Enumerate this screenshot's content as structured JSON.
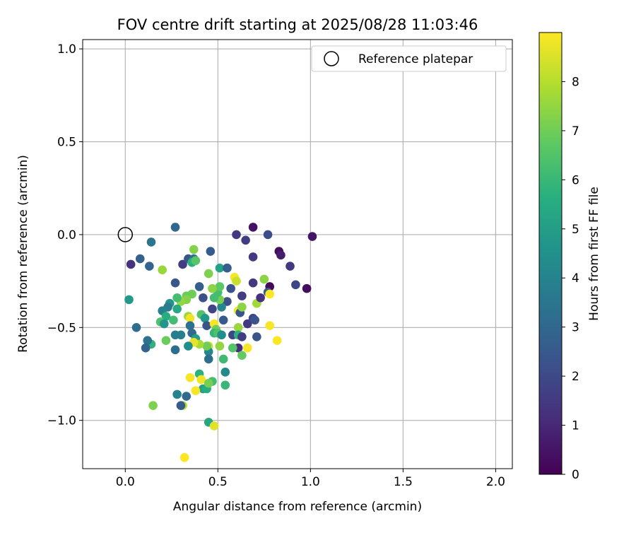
{
  "chart_data": {
    "type": "scatter",
    "title": "FOV centre drift starting at 2025/08/28 11:03:46",
    "xlabel": "Angular distance from reference (arcmin)",
    "ylabel": "Rotation from reference (arcmin)",
    "xlim": [
      -0.23,
      2.09
    ],
    "ylim": [
      -1.26,
      1.05
    ],
    "xticks": [
      0.0,
      0.5,
      1.0,
      1.5,
      2.0
    ],
    "xtick_labels": [
      "0.0",
      "0.5",
      "1.0",
      "1.5",
      "2.0"
    ],
    "yticks": [
      -1.0,
      -0.5,
      0.0,
      0.5,
      1.0
    ],
    "ytick_labels": [
      "−1.0",
      "−0.5",
      "0.0",
      "0.5",
      "1.0"
    ],
    "grid": true,
    "legend": {
      "placement": "top-right",
      "entries": [
        "Reference platepar"
      ]
    },
    "reference": {
      "x": 0.0,
      "y": 0.0
    },
    "colorbar": {
      "label": "Hours from first FF file",
      "range": [
        0,
        9.0
      ],
      "ticks": [
        0,
        1,
        2,
        3,
        4,
        5,
        6,
        7,
        8
      ],
      "colormap": "viridis"
    },
    "points": [
      [
        0.03,
        -0.16,
        1.3
      ],
      [
        0.08,
        -0.13,
        2.8
      ],
      [
        0.14,
        -0.04,
        3.5
      ],
      [
        0.27,
        0.04,
        3.0
      ],
      [
        0.13,
        -0.17,
        2.9
      ],
      [
        0.31,
        -0.16,
        1.6
      ],
      [
        0.34,
        -0.13,
        2.4
      ],
      [
        0.37,
        -0.13,
        3.4
      ],
      [
        0.36,
        -0.15,
        5.7
      ],
      [
        0.37,
        -0.08,
        7.3
      ],
      [
        0.38,
        -0.14,
        6.6
      ],
      [
        0.46,
        -0.09,
        2.6
      ],
      [
        0.2,
        -0.19,
        7.6
      ],
      [
        0.45,
        -0.21,
        7.2
      ],
      [
        0.51,
        -0.18,
        5.2
      ],
      [
        0.55,
        -0.18,
        3.3
      ],
      [
        0.55,
        -0.18,
        2.7
      ],
      [
        0.6,
        0.0,
        1.5
      ],
      [
        0.65,
        -0.03,
        1.6
      ],
      [
        0.69,
        0.04,
        0.4
      ],
      [
        0.69,
        -0.12,
        1.5
      ],
      [
        0.77,
        0.0,
        2.1
      ],
      [
        0.83,
        -0.09,
        0.3
      ],
      [
        0.84,
        -0.11,
        0.7
      ],
      [
        0.89,
        -0.17,
        1.5
      ],
      [
        1.01,
        -0.01,
        0.5
      ],
      [
        0.92,
        -0.27,
        1.9
      ],
      [
        0.98,
        -0.29,
        0.3
      ],
      [
        0.78,
        -0.28,
        0.2
      ],
      [
        0.77,
        -0.31,
        2.6
      ],
      [
        0.75,
        -0.24,
        7.4
      ],
      [
        0.71,
        -0.37,
        7.7
      ],
      [
        0.78,
        -0.32,
        9.0
      ],
      [
        0.73,
        -0.34,
        1.3
      ],
      [
        0.69,
        -0.26,
        1.5
      ],
      [
        0.63,
        -0.33,
        1.6
      ],
      [
        0.59,
        -0.23,
        8.9
      ],
      [
        0.6,
        -0.25,
        8.3
      ],
      [
        0.57,
        -0.29,
        2.3
      ],
      [
        0.61,
        -0.41,
        8.8
      ],
      [
        0.55,
        -0.36,
        2.2
      ],
      [
        0.53,
        -0.46,
        2.5
      ],
      [
        0.52,
        -0.39,
        4.1
      ],
      [
        0.51,
        -0.35,
        7.1
      ],
      [
        0.5,
        -0.31,
        6.2
      ],
      [
        0.51,
        -0.28,
        6.7
      ],
      [
        0.47,
        -0.29,
        7.4
      ],
      [
        0.48,
        -0.34,
        6.2
      ],
      [
        0.47,
        -0.4,
        1.8
      ],
      [
        0.42,
        -0.34,
        2.2
      ],
      [
        0.4,
        -0.28,
        2.7
      ],
      [
        0.36,
        -0.32,
        7.0
      ],
      [
        0.33,
        -0.33,
        6.9
      ],
      [
        0.33,
        -0.35,
        7.3
      ],
      [
        0.3,
        -0.36,
        7.5
      ],
      [
        0.28,
        -0.34,
        6.2
      ],
      [
        0.27,
        -0.26,
        2.4
      ],
      [
        0.24,
        -0.37,
        4.6
      ],
      [
        0.23,
        -0.39,
        3.7
      ],
      [
        0.2,
        -0.41,
        3.9
      ],
      [
        0.22,
        -0.44,
        5.6
      ],
      [
        0.19,
        -0.47,
        6.4
      ],
      [
        0.21,
        -0.48,
        4.7
      ],
      [
        0.26,
        -0.46,
        6.2
      ],
      [
        0.28,
        -0.4,
        5.4
      ],
      [
        0.34,
        -0.44,
        7.6
      ],
      [
        0.35,
        -0.45,
        8.8
      ],
      [
        0.35,
        -0.49,
        3.3
      ],
      [
        0.36,
        -0.53,
        3.1
      ],
      [
        0.38,
        -0.56,
        5.0
      ],
      [
        0.41,
        -0.43,
        6.5
      ],
      [
        0.43,
        -0.45,
        4.8
      ],
      [
        0.44,
        -0.49,
        2.3
      ],
      [
        0.48,
        -0.48,
        8.9
      ],
      [
        0.49,
        -0.51,
        7.0
      ],
      [
        0.48,
        -0.53,
        5.9
      ],
      [
        0.5,
        -0.53,
        6.4
      ],
      [
        0.52,
        -0.54,
        4.4
      ],
      [
        0.58,
        -0.54,
        1.9
      ],
      [
        0.62,
        -0.42,
        2.4
      ],
      [
        0.63,
        -0.39,
        7.4
      ],
      [
        0.61,
        -0.5,
        7.6
      ],
      [
        0.61,
        -0.54,
        5.7
      ],
      [
        0.63,
        -0.55,
        1.6
      ],
      [
        0.66,
        -0.48,
        1.5
      ],
      [
        0.69,
        -0.45,
        1.9
      ],
      [
        0.7,
        -0.46,
        2.3
      ],
      [
        0.71,
        -0.55,
        2.4
      ],
      [
        0.78,
        -0.49,
        8.9
      ],
      [
        0.82,
        -0.57,
        9.0
      ],
      [
        0.66,
        -0.61,
        8.9
      ],
      [
        0.61,
        -0.61,
        1.1
      ],
      [
        0.58,
        -0.61,
        6.5
      ],
      [
        0.63,
        -0.65,
        6.8
      ],
      [
        0.53,
        -0.67,
        6.1
      ],
      [
        0.51,
        -0.6,
        7.5
      ],
      [
        0.45,
        -0.6,
        8.3
      ],
      [
        0.45,
        -0.63,
        4.1
      ],
      [
        0.44,
        -0.6,
        7.0
      ],
      [
        0.4,
        -0.59,
        7.8
      ],
      [
        0.37,
        -0.58,
        8.7
      ],
      [
        0.34,
        -0.6,
        4.4
      ],
      [
        0.3,
        -0.54,
        3.8
      ],
      [
        0.27,
        -0.54,
        3.8
      ],
      [
        0.27,
        -0.62,
        3.2
      ],
      [
        0.22,
        -0.57,
        6.9
      ],
      [
        0.14,
        -0.59,
        5.8
      ],
      [
        0.12,
        -0.57,
        3.4
      ],
      [
        0.11,
        -0.61,
        2.9
      ],
      [
        0.06,
        -0.5,
        3.2
      ],
      [
        0.02,
        -0.35,
        4.8
      ],
      [
        0.45,
        -0.67,
        3.2
      ],
      [
        0.4,
        -0.75,
        5.7
      ],
      [
        0.41,
        -0.78,
        8.8
      ],
      [
        0.35,
        -0.77,
        8.9
      ],
      [
        0.42,
        -0.83,
        5.1
      ],
      [
        0.44,
        -0.83,
        5.6
      ],
      [
        0.47,
        -0.79,
        6.2
      ],
      [
        0.45,
        -0.8,
        7.1
      ],
      [
        0.54,
        -0.81,
        6.0
      ],
      [
        0.54,
        -0.74,
        4.2
      ],
      [
        0.38,
        -0.84,
        8.9
      ],
      [
        0.33,
        -0.87,
        3.1
      ],
      [
        0.28,
        -0.86,
        4.0
      ],
      [
        0.31,
        -0.92,
        7.9
      ],
      [
        0.3,
        -0.92,
        2.6
      ],
      [
        0.15,
        -0.92,
        7.2
      ],
      [
        0.45,
        -1.01,
        5.3
      ],
      [
        0.48,
        -1.03,
        8.6
      ],
      [
        0.32,
        -1.2,
        9.0
      ]
    ]
  }
}
